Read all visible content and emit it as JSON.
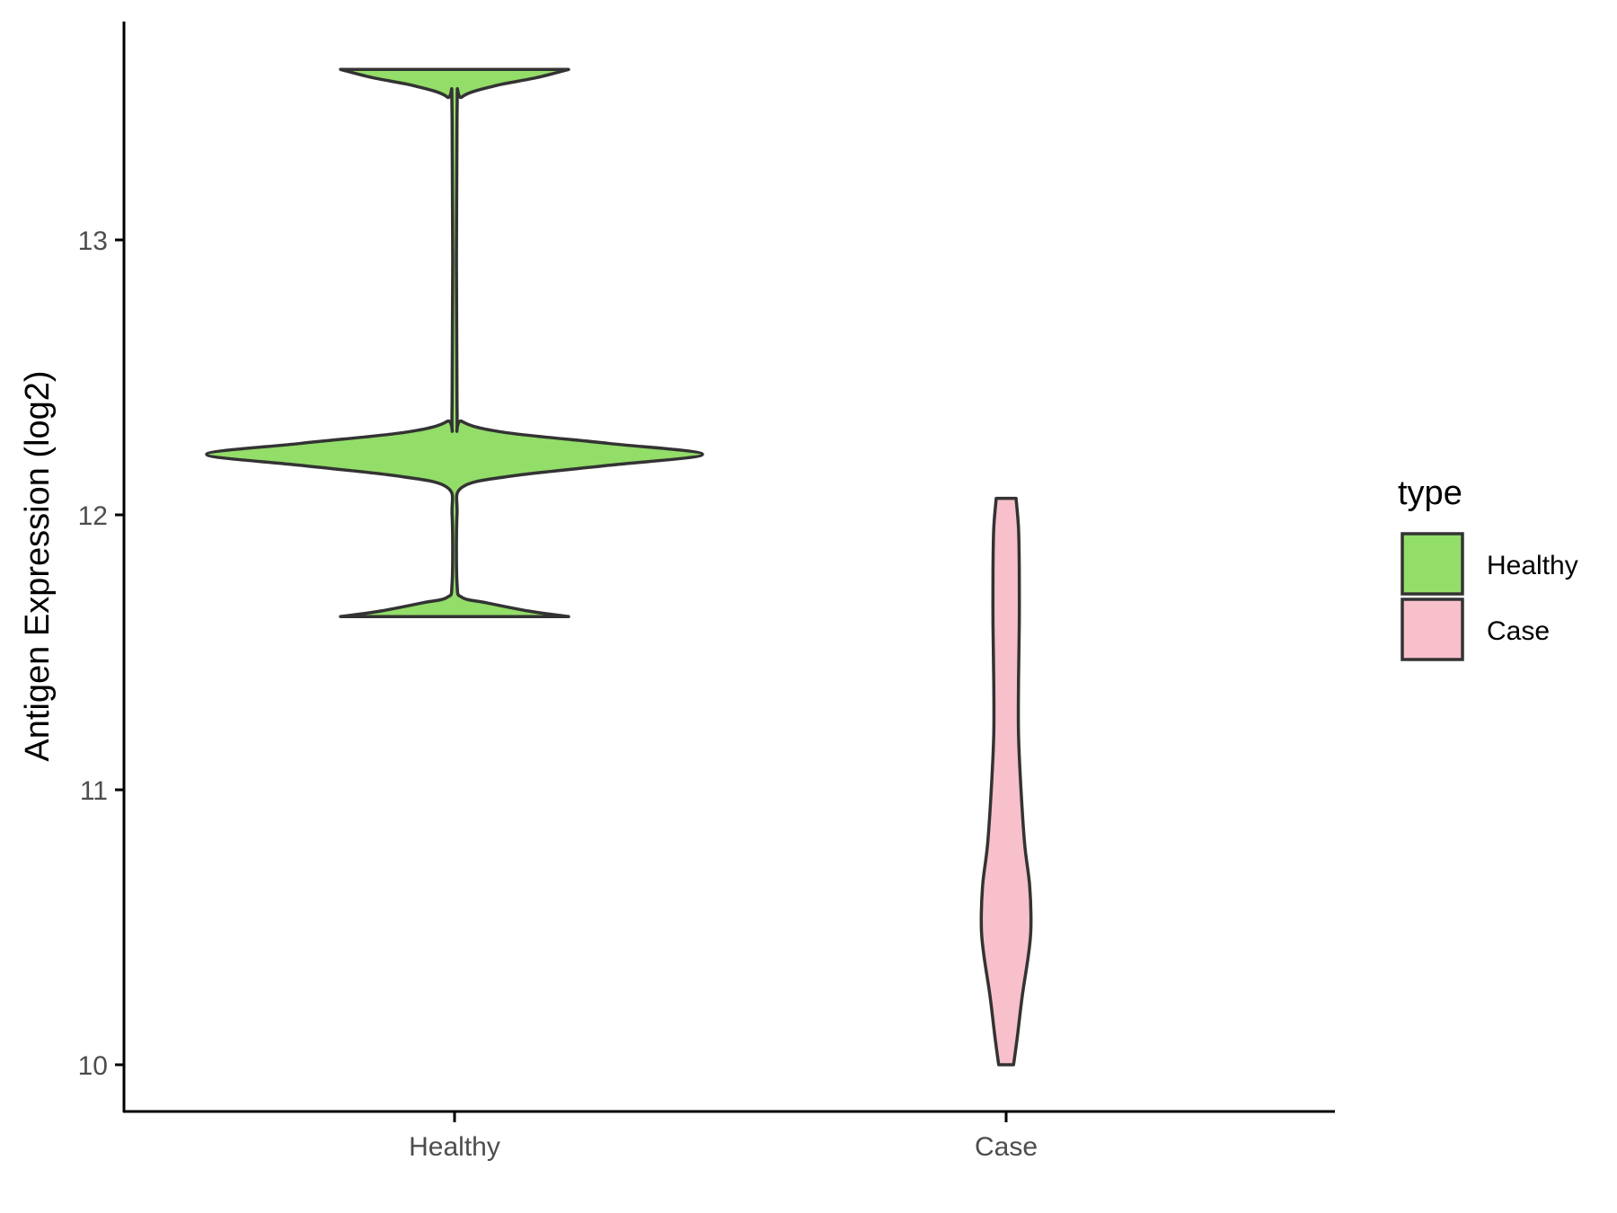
{
  "chart_data": {
    "type": "violin",
    "xlabel": "",
    "ylabel": "Antigen Expression (log2)",
    "categories": [
      "Healthy",
      "Case"
    ],
    "ylim": [
      9.83,
      13.8
    ],
    "yticks": [
      10,
      11,
      12,
      13
    ],
    "grid": false,
    "legend": {
      "title": "type",
      "position": "right",
      "entries": [
        {
          "label": "Healthy",
          "color": "#93dd69"
        },
        {
          "label": "Case",
          "color": "#f7c0cb"
        }
      ]
    },
    "series": [
      {
        "name": "Healthy",
        "color": "#93dd69",
        "min": 11.63,
        "max": 13.62,
        "density": [
          [
            11.63,
            0.46
          ],
          [
            11.65,
            0.3
          ],
          [
            11.68,
            0.13
          ],
          [
            11.7,
            0.03
          ],
          [
            11.75,
            0.01
          ],
          [
            12.0,
            0.01
          ],
          [
            12.1,
            0.03
          ],
          [
            12.14,
            0.22
          ],
          [
            12.18,
            0.62
          ],
          [
            12.22,
            1.0
          ],
          [
            12.26,
            0.62
          ],
          [
            12.3,
            0.2
          ],
          [
            12.34,
            0.03
          ],
          [
            12.4,
            0.01
          ],
          [
            13.45,
            0.01
          ],
          [
            13.52,
            0.03
          ],
          [
            13.56,
            0.16
          ],
          [
            13.59,
            0.33
          ],
          [
            13.62,
            0.46
          ]
        ]
      },
      {
        "name": "Case",
        "color": "#f7c0cb",
        "min": 10.0,
        "max": 12.06,
        "density": [
          [
            10.0,
            0.03
          ],
          [
            10.1,
            0.045
          ],
          [
            10.25,
            0.065
          ],
          [
            10.4,
            0.09
          ],
          [
            10.5,
            0.1
          ],
          [
            10.65,
            0.095
          ],
          [
            10.8,
            0.075
          ],
          [
            11.0,
            0.06
          ],
          [
            11.2,
            0.05
          ],
          [
            11.4,
            0.05
          ],
          [
            11.6,
            0.053
          ],
          [
            11.8,
            0.053
          ],
          [
            11.95,
            0.05
          ],
          [
            12.06,
            0.04
          ]
        ]
      }
    ]
  }
}
